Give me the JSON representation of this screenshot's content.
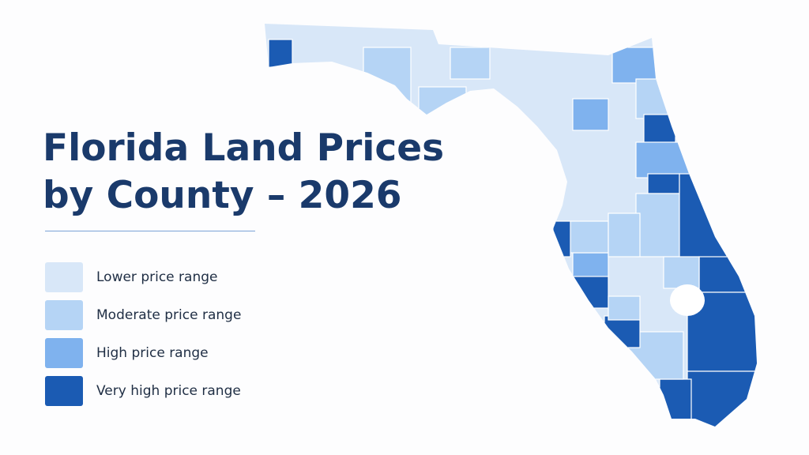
{
  "title": [
    "Florida Land Prices",
    "by County – 2026"
  ],
  "legend": [
    {
      "label": "Lower price range",
      "color": "#d8e7f8"
    },
    {
      "label": "Moderate price range",
      "color": "#b5d4f5"
    },
    {
      "label": "High price range",
      "color": "#7fb2ee"
    },
    {
      "label": "Very high price range",
      "color": "#1b5bb3"
    }
  ]
}
